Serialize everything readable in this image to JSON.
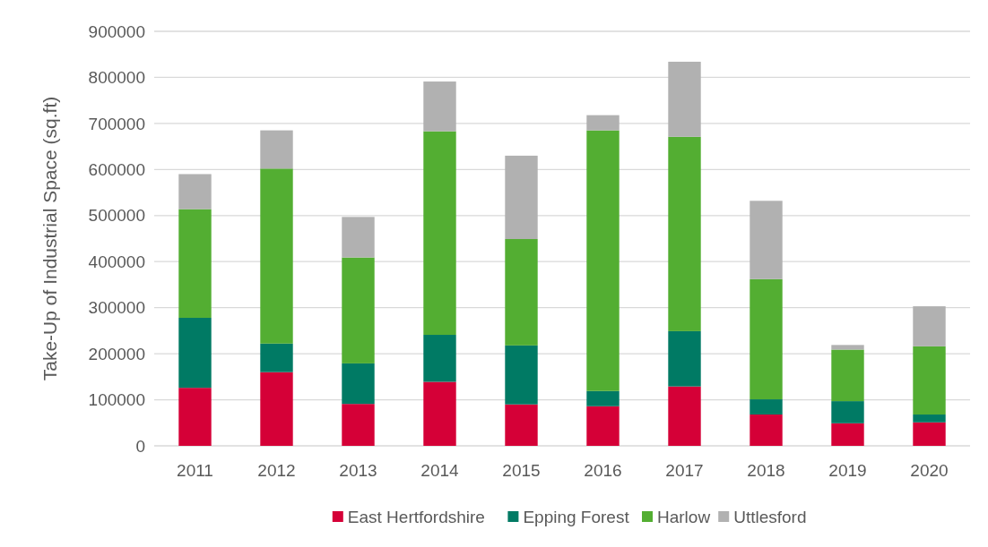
{
  "chart_data": {
    "type": "bar",
    "ylabel": "Take-Up of Industrial Space (sq.ft)",
    "categories": [
      "2011",
      "2012",
      "2013",
      "2014",
      "2015",
      "2016",
      "2017",
      "2018",
      "2019",
      "2020"
    ],
    "stacked": true,
    "legend": "bottom",
    "grid": "y",
    "ylim": [
      0,
      900000
    ],
    "yticks": [
      0,
      100000,
      200000,
      300000,
      400000,
      500000,
      600000,
      700000,
      800000,
      900000
    ],
    "series": [
      {
        "name": "East Hertfordshire",
        "color": "#d50037",
        "values": [
          126000,
          160000,
          91000,
          139000,
          90000,
          86000,
          129000,
          68000,
          49000,
          51000
        ]
      },
      {
        "name": "Epping Forest",
        "color": "#007a64",
        "values": [
          152000,
          62000,
          88000,
          102000,
          128000,
          33000,
          120000,
          33000,
          48000,
          17000
        ]
      },
      {
        "name": "Harlow",
        "color": "#53ae32",
        "values": [
          236000,
          380000,
          230000,
          442000,
          231000,
          566000,
          422000,
          261000,
          112000,
          148000
        ]
      },
      {
        "name": "Uttlesford",
        "color": "#b1b1b1",
        "values": [
          76000,
          83000,
          88000,
          108000,
          181000,
          33000,
          163000,
          170000,
          10000,
          87000
        ]
      }
    ]
  }
}
